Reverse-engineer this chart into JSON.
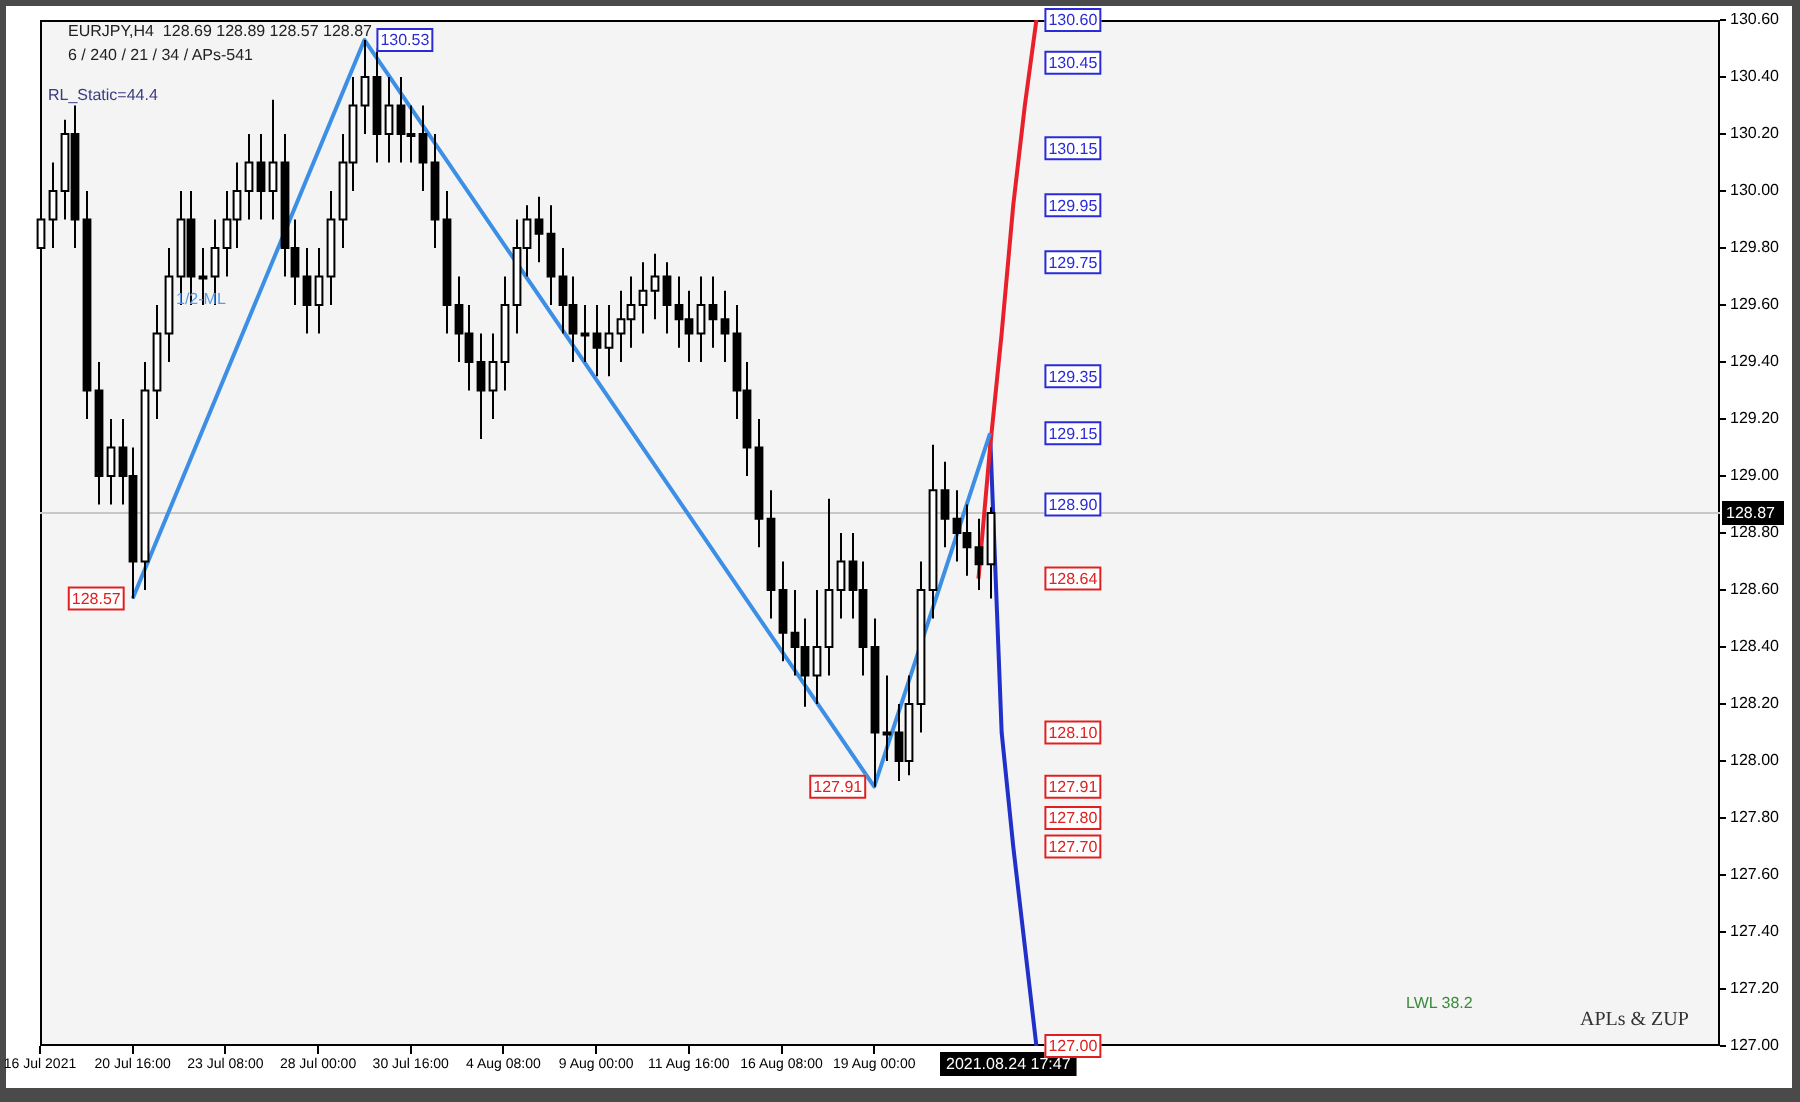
{
  "chart_data": {
    "type": "candlestick",
    "title": "EURJPY,H4  128.69 128.89 128.57 128.87",
    "subtitle": "6 / 240 / 21 / 34 / APs-541",
    "categories": [
      "16 Jul 2021",
      null,
      null,
      null,
      null,
      null,
      null,
      null,
      "20 Jul 16:00",
      null,
      null,
      null,
      null,
      null,
      null,
      null,
      "23 Jul 08:00",
      null,
      null,
      null,
      null,
      null,
      null,
      null,
      "28 Jul 00:00",
      null,
      null,
      null,
      null,
      null,
      null,
      null,
      "30 Jul 16:00",
      null,
      null,
      null,
      null,
      null,
      null,
      null,
      "4 Aug 08:00",
      null,
      null,
      null,
      null,
      null,
      null,
      null,
      "9 Aug 00:00",
      null,
      null,
      null,
      null,
      null,
      null,
      null,
      "11 Aug 16:00",
      null,
      null,
      null,
      null,
      null,
      null,
      null,
      "16 Aug 08:00",
      null,
      null,
      null,
      null,
      null,
      null,
      null,
      "19 Aug 00:00",
      null,
      null,
      null,
      null,
      null,
      null,
      null,
      null,
      null,
      null,
      null,
      null,
      null,
      null,
      null,
      null,
      null,
      null,
      null,
      null,
      null,
      null,
      null,
      null,
      null,
      null,
      null,
      null,
      null,
      null,
      null,
      null,
      null,
      null,
      null,
      null,
      null,
      null,
      null,
      null,
      null,
      null,
      null,
      null,
      null,
      null,
      null,
      null,
      null,
      null,
      null,
      null,
      null,
      null,
      null,
      null,
      null,
      null,
      null,
      null,
      null,
      null,
      null,
      null,
      null,
      null,
      null,
      null,
      null,
      null,
      null,
      null,
      null
    ],
    "ohlc": [
      [
        129.8,
        130.0,
        129.7,
        129.9
      ],
      [
        129.9,
        130.1,
        129.8,
        130.0
      ],
      [
        130.0,
        130.25,
        129.9,
        130.2
      ],
      [
        130.2,
        130.3,
        129.8,
        129.9
      ],
      [
        129.9,
        130.0,
        129.2,
        129.3
      ],
      [
        129.3,
        129.4,
        128.9,
        129.0
      ],
      [
        129.0,
        129.2,
        128.9,
        129.1
      ],
      [
        129.1,
        129.2,
        128.9,
        129.0
      ],
      [
        129.0,
        129.1,
        128.57,
        128.7
      ],
      [
        128.7,
        129.4,
        128.6,
        129.3
      ],
      [
        129.3,
        129.6,
        129.2,
        129.5
      ],
      [
        129.5,
        129.8,
        129.4,
        129.7
      ],
      [
        129.7,
        130.0,
        129.6,
        129.9
      ],
      [
        129.9,
        130.0,
        129.6,
        129.7
      ],
      [
        129.7,
        129.8,
        129.6,
        129.7
      ],
      [
        129.7,
        129.9,
        129.6,
        129.8
      ],
      [
        129.8,
        130.0,
        129.7,
        129.9
      ],
      [
        129.9,
        130.1,
        129.8,
        130.0
      ],
      [
        130.0,
        130.2,
        129.9,
        130.1
      ],
      [
        130.1,
        130.2,
        129.9,
        130.0
      ],
      [
        130.0,
        130.32,
        129.9,
        130.1
      ],
      [
        130.1,
        130.2,
        129.7,
        129.8
      ],
      [
        129.8,
        129.9,
        129.6,
        129.7
      ],
      [
        129.7,
        129.8,
        129.5,
        129.6
      ],
      [
        129.6,
        129.8,
        129.5,
        129.7
      ],
      [
        129.7,
        130.0,
        129.6,
        129.9
      ],
      [
        129.9,
        130.2,
        129.8,
        130.1
      ],
      [
        130.1,
        130.4,
        130.0,
        130.3
      ],
      [
        130.3,
        130.53,
        130.2,
        130.4
      ],
      [
        130.4,
        130.5,
        130.1,
        130.2
      ],
      [
        130.2,
        130.4,
        130.1,
        130.3
      ],
      [
        130.3,
        130.4,
        130.1,
        130.2
      ],
      [
        130.2,
        130.3,
        130.1,
        130.2
      ],
      [
        130.2,
        130.3,
        130.0,
        130.1
      ],
      [
        130.1,
        130.2,
        129.8,
        129.9
      ],
      [
        129.9,
        130.0,
        129.5,
        129.6
      ],
      [
        129.6,
        129.7,
        129.4,
        129.5
      ],
      [
        129.5,
        129.6,
        129.3,
        129.4
      ],
      [
        129.4,
        129.5,
        129.13,
        129.3
      ],
      [
        129.3,
        129.5,
        129.2,
        129.4
      ],
      [
        129.4,
        129.7,
        129.3,
        129.6
      ],
      [
        129.6,
        129.9,
        129.5,
        129.8
      ],
      [
        129.8,
        129.95,
        129.7,
        129.9
      ],
      [
        129.9,
        129.98,
        129.75,
        129.85
      ],
      [
        129.85,
        129.95,
        129.6,
        129.7
      ],
      [
        129.7,
        129.8,
        129.5,
        129.6
      ],
      [
        129.6,
        129.7,
        129.4,
        129.5
      ],
      [
        129.5,
        129.6,
        129.4,
        129.5
      ],
      [
        129.5,
        129.6,
        129.35,
        129.45
      ],
      [
        129.45,
        129.6,
        129.35,
        129.5
      ],
      [
        129.5,
        129.65,
        129.4,
        129.55
      ],
      [
        129.55,
        129.7,
        129.45,
        129.6
      ],
      [
        129.6,
        129.75,
        129.5,
        129.65
      ],
      [
        129.65,
        129.78,
        129.55,
        129.7
      ],
      [
        129.7,
        129.75,
        129.5,
        129.6
      ],
      [
        129.6,
        129.7,
        129.45,
        129.55
      ],
      [
        129.55,
        129.65,
        129.4,
        129.5
      ],
      [
        129.5,
        129.7,
        129.4,
        129.6
      ],
      [
        129.6,
        129.7,
        129.45,
        129.55
      ],
      [
        129.55,
        129.65,
        129.4,
        129.5
      ],
      [
        129.5,
        129.6,
        129.2,
        129.3
      ],
      [
        129.3,
        129.4,
        129.0,
        129.1
      ],
      [
        129.1,
        129.2,
        128.75,
        128.85
      ],
      [
        128.85,
        128.95,
        128.5,
        128.6
      ],
      [
        128.6,
        128.7,
        128.35,
        128.45
      ],
      [
        128.45,
        128.6,
        128.3,
        128.4
      ],
      [
        128.4,
        128.5,
        128.19,
        128.3
      ],
      [
        128.3,
        128.6,
        128.2,
        128.4
      ],
      [
        128.4,
        128.92,
        128.3,
        128.6
      ],
      [
        128.6,
        128.8,
        128.5,
        128.7
      ],
      [
        128.7,
        128.8,
        128.5,
        128.6
      ],
      [
        128.6,
        128.7,
        128.3,
        128.4
      ],
      [
        128.4,
        128.5,
        127.91,
        128.1
      ],
      [
        128.1,
        128.3,
        128.0,
        128.1
      ],
      [
        128.1,
        128.2,
        127.93,
        128.0
      ],
      [
        128.0,
        128.3,
        127.95,
        128.2
      ],
      [
        128.2,
        128.7,
        128.1,
        128.6
      ],
      [
        128.6,
        129.11,
        128.5,
        128.95
      ],
      [
        128.95,
        129.05,
        128.75,
        128.85
      ],
      [
        128.85,
        128.95,
        128.7,
        128.8
      ],
      [
        128.8,
        128.9,
        128.65,
        128.75
      ],
      [
        128.75,
        128.85,
        128.6,
        128.69
      ],
      [
        128.69,
        128.89,
        128.57,
        128.87
      ],
      null,
      null,
      null,
      null,
      null,
      null,
      null,
      null,
      null,
      null,
      null,
      null,
      null,
      null,
      null,
      null,
      null,
      null,
      null,
      null,
      null,
      null,
      null,
      null,
      null,
      null,
      null,
      null,
      null,
      null,
      null,
      null,
      null,
      null,
      null,
      null,
      null,
      null,
      null,
      null,
      null,
      null,
      null,
      null,
      null,
      null,
      null,
      null,
      null,
      null,
      null,
      null,
      null,
      null,
      null,
      null,
      null,
      null,
      null,
      null,
      null,
      null,
      null
    ],
    "series": [
      {
        "type": "line",
        "color": "#3d8fe6",
        "values": [
          null,
          null,
          null,
          null,
          null,
          null,
          null,
          null,
          128.57,
          null,
          null,
          null,
          null,
          null,
          null,
          null,
          null,
          null,
          null,
          null,
          null,
          null,
          null,
          null,
          null,
          null,
          null,
          null,
          130.53,
          null,
          null,
          null,
          null,
          null,
          null,
          null,
          null,
          null,
          null,
          null,
          null,
          null,
          null,
          null,
          null,
          null,
          null,
          null,
          null,
          null,
          null,
          null,
          null,
          null,
          null,
          null,
          null,
          null,
          null,
          null,
          null,
          null,
          null,
          null,
          null,
          null,
          null,
          null,
          null,
          null,
          null,
          null,
          127.91,
          null,
          null,
          null,
          null,
          null,
          null,
          null,
          null,
          null,
          129.15,
          null,
          null,
          null,
          null,
          null,
          null,
          null,
          null,
          null,
          null,
          null,
          null,
          null,
          null,
          null,
          null,
          null,
          null,
          null,
          null,
          null,
          null,
          null,
          null,
          null,
          null,
          null,
          null,
          null,
          null,
          null,
          null,
          null,
          null,
          null,
          null,
          null,
          null,
          null,
          null,
          null,
          null,
          null,
          null,
          null,
          null,
          null,
          null,
          null,
          null,
          null,
          null,
          null,
          null,
          null,
          null,
          null,
          null,
          null,
          null,
          null,
          null,
          null
        ],
        "value_labels": [
          null,
          null,
          null,
          null,
          null,
          null,
          null,
          null,
          "128.57",
          null,
          null,
          null,
          null,
          null,
          null,
          null,
          null,
          null,
          null,
          null,
          null,
          null,
          null,
          null,
          null,
          null,
          null,
          null,
          "130.53",
          null,
          null,
          null,
          null,
          null,
          null,
          null,
          null,
          null,
          null,
          null,
          null,
          null,
          null,
          null,
          null,
          null,
          null,
          null,
          null,
          null,
          null,
          null,
          null,
          null,
          null,
          null,
          null,
          null,
          null,
          null,
          null,
          null,
          null,
          null,
          null,
          null,
          null,
          null,
          null,
          null,
          null,
          null,
          "127.91",
          null,
          null,
          null,
          null,
          null,
          null,
          null,
          null,
          null,
          null,
          null,
          null,
          null,
          null,
          null,
          null,
          null,
          null,
          null,
          null,
          null,
          null,
          null,
          null,
          null,
          null,
          null,
          null,
          null,
          null,
          null,
          null,
          null,
          null,
          null,
          null,
          null,
          null,
          null,
          null,
          null,
          null,
          null,
          null,
          null,
          null,
          null,
          null,
          null,
          null,
          null,
          null,
          null,
          null,
          null,
          null,
          null,
          null,
          null,
          null,
          null,
          null,
          null,
          null,
          null,
          null,
          null,
          null,
          null,
          null,
          null,
          null,
          null
        ]
      },
      {
        "type": "line",
        "color": "#e8202a",
        "values": [
          null,
          null,
          null,
          null,
          null,
          null,
          null,
          null,
          null,
          null,
          null,
          null,
          null,
          null,
          null,
          null,
          null,
          null,
          null,
          null,
          null,
          null,
          null,
          null,
          null,
          null,
          null,
          null,
          null,
          null,
          null,
          null,
          null,
          null,
          null,
          null,
          null,
          null,
          null,
          null,
          null,
          null,
          null,
          null,
          null,
          null,
          null,
          null,
          null,
          null,
          null,
          null,
          null,
          null,
          null,
          null,
          null,
          null,
          null,
          null,
          null,
          null,
          null,
          null,
          null,
          null,
          null,
          null,
          null,
          null,
          null,
          null,
          null,
          null,
          null,
          null,
          null,
          null,
          null,
          null,
          null,
          128.64,
          129.1,
          129.5,
          129.95,
          130.3,
          130.6,
          null,
          null,
          null,
          null,
          null,
          null,
          null,
          null,
          null,
          null,
          null,
          null,
          null,
          null,
          null,
          null,
          null,
          null,
          null,
          null,
          null,
          null,
          null,
          null,
          null,
          null,
          null,
          null,
          null,
          null,
          null,
          null,
          null,
          null,
          null,
          null,
          null,
          null,
          null,
          null,
          null,
          null,
          null,
          null,
          null,
          null,
          null,
          null,
          null,
          null,
          null,
          null,
          null,
          null,
          null,
          null,
          null,
          null,
          null
        ]
      },
      {
        "type": "line",
        "color": "#2030c8",
        "values": [
          null,
          null,
          null,
          null,
          null,
          null,
          null,
          null,
          null,
          null,
          null,
          null,
          null,
          null,
          null,
          null,
          null,
          null,
          null,
          null,
          null,
          null,
          null,
          null,
          null,
          null,
          null,
          null,
          null,
          null,
          null,
          null,
          null,
          null,
          null,
          null,
          null,
          null,
          null,
          null,
          null,
          null,
          null,
          null,
          null,
          null,
          null,
          null,
          null,
          null,
          null,
          null,
          null,
          null,
          null,
          null,
          null,
          null,
          null,
          null,
          null,
          null,
          null,
          null,
          null,
          null,
          null,
          null,
          null,
          null,
          null,
          null,
          null,
          null,
          null,
          null,
          null,
          null,
          null,
          null,
          null,
          null,
          129.15,
          128.1,
          127.7,
          127.35,
          127.0,
          null,
          null,
          null,
          null,
          null,
          null,
          null,
          null,
          null,
          null,
          null,
          null,
          null,
          null,
          null,
          null,
          null,
          null,
          null,
          null,
          null,
          null,
          null,
          null,
          null,
          null,
          null,
          null,
          null,
          null,
          null,
          null,
          null,
          null,
          null,
          null,
          null,
          null,
          null,
          null,
          null,
          null,
          null,
          null,
          null,
          null,
          null,
          null,
          null,
          null,
          null,
          null,
          null,
          null,
          null,
          null,
          null,
          null,
          null
        ]
      }
    ],
    "ylim": [
      127.0,
      130.6
    ],
    "yticks": [
      {
        "value": 127.0,
        "label": "127.00"
      },
      {
        "value": 127.2,
        "label": "127.20"
      },
      {
        "value": 127.4,
        "label": "127.40"
      },
      {
        "value": 127.6,
        "label": "127.60"
      },
      {
        "value": 127.8,
        "label": "127.80"
      },
      {
        "value": 128.0,
        "label": "128.00"
      },
      {
        "value": 128.2,
        "label": "128.20"
      },
      {
        "value": 128.4,
        "label": "128.40"
      },
      {
        "value": 128.6,
        "label": "128.60"
      },
      {
        "value": 128.8,
        "label": "128.80"
      },
      {
        "value": 129.0,
        "label": "129.00"
      },
      {
        "value": 129.2,
        "label": "129.20"
      },
      {
        "value": 129.4,
        "label": "129.40"
      },
      {
        "value": 129.6,
        "label": "129.60"
      },
      {
        "value": 129.8,
        "label": "129.80"
      },
      {
        "value": 130.0,
        "label": "130.00"
      },
      {
        "value": 130.2,
        "label": "130.20"
      },
      {
        "value": 130.4,
        "label": "130.40"
      },
      {
        "value": 130.6,
        "label": "130.60"
      }
    ],
    "ref_lines": [
      {
        "axis": "y",
        "value": 128.87,
        "label": "128.87",
        "color": "#c8c8c8"
      }
    ],
    "annotations": [
      "RL_Static=44.4",
      "1/2-ML",
      "LWL 38.2",
      "APLs & ZUP",
      "2021.08.24 17:47",
      {
        "text": "130.60",
        "y": 130.6
      },
      {
        "text": "130.45",
        "y": 130.45
      },
      {
        "text": "130.15",
        "y": 130.15
      },
      {
        "text": "129.95",
        "y": 129.95
      },
      {
        "text": "129.75",
        "y": 129.75
      },
      {
        "text": "129.35",
        "y": 129.35
      },
      {
        "text": "129.15",
        "y": 129.15
      },
      {
        "text": "128.90",
        "y": 128.9
      },
      {
        "text": "128.64",
        "y": 128.64
      },
      {
        "text": "128.10",
        "y": 128.1
      },
      {
        "text": "127.91",
        "y": 127.91
      },
      {
        "text": "127.80",
        "y": 127.8
      },
      {
        "text": "127.70",
        "y": 127.7
      },
      {
        "text": "127.00",
        "y": 127.0
      }
    ],
    "grid": false,
    "legend": false
  }
}
